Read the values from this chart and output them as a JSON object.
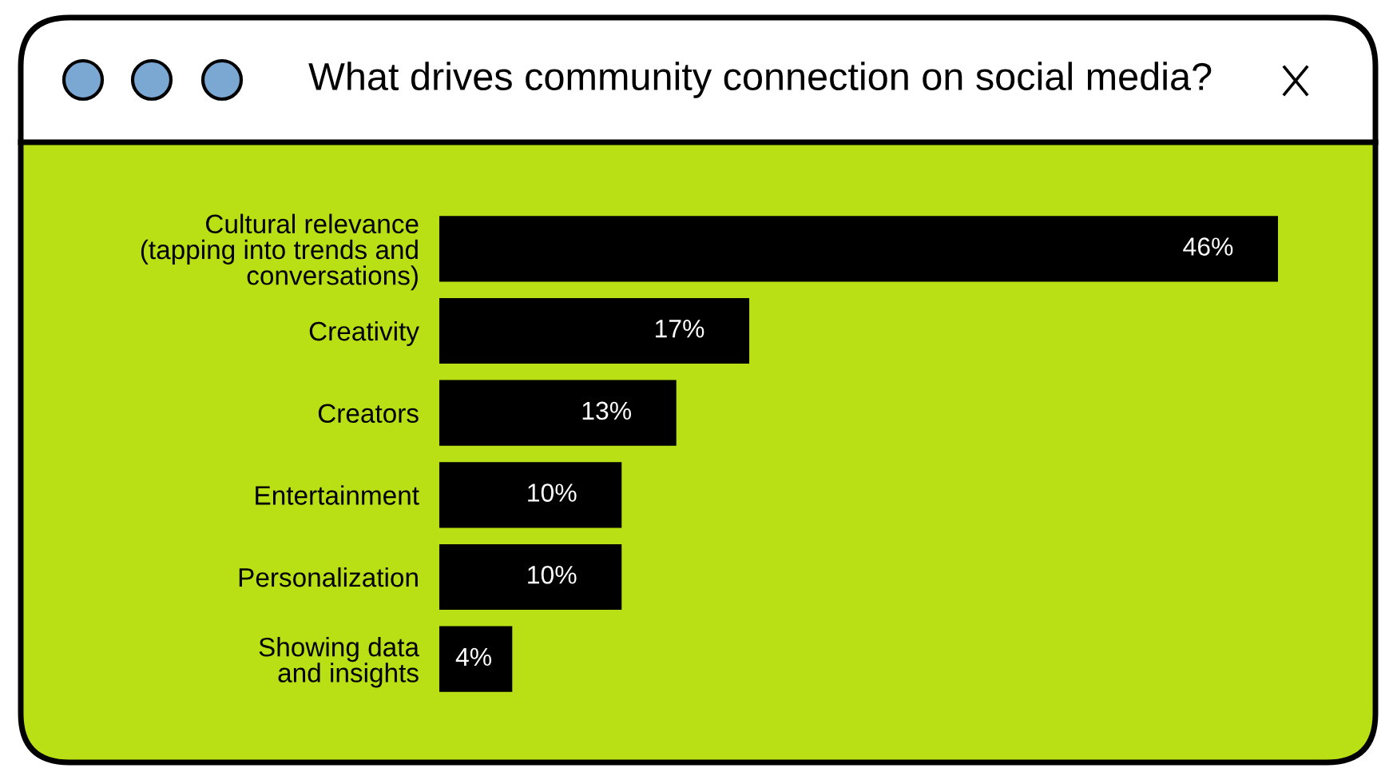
{
  "chart_data": {
    "type": "bar",
    "orientation": "horizontal",
    "title": "What drives community connection on social media?",
    "categories": [
      "Cultural relevance\n(tapping into trends and\nconversations)",
      "Creativity",
      "Creators",
      "Entertainment",
      "Personalization",
      "Showing data\nand insights"
    ],
    "values": [
      46,
      17,
      13,
      10,
      10,
      4
    ],
    "value_labels": [
      "46%",
      "17%",
      "13%",
      "10%",
      "10%",
      "4%"
    ],
    "color": "#000000"
  }
}
